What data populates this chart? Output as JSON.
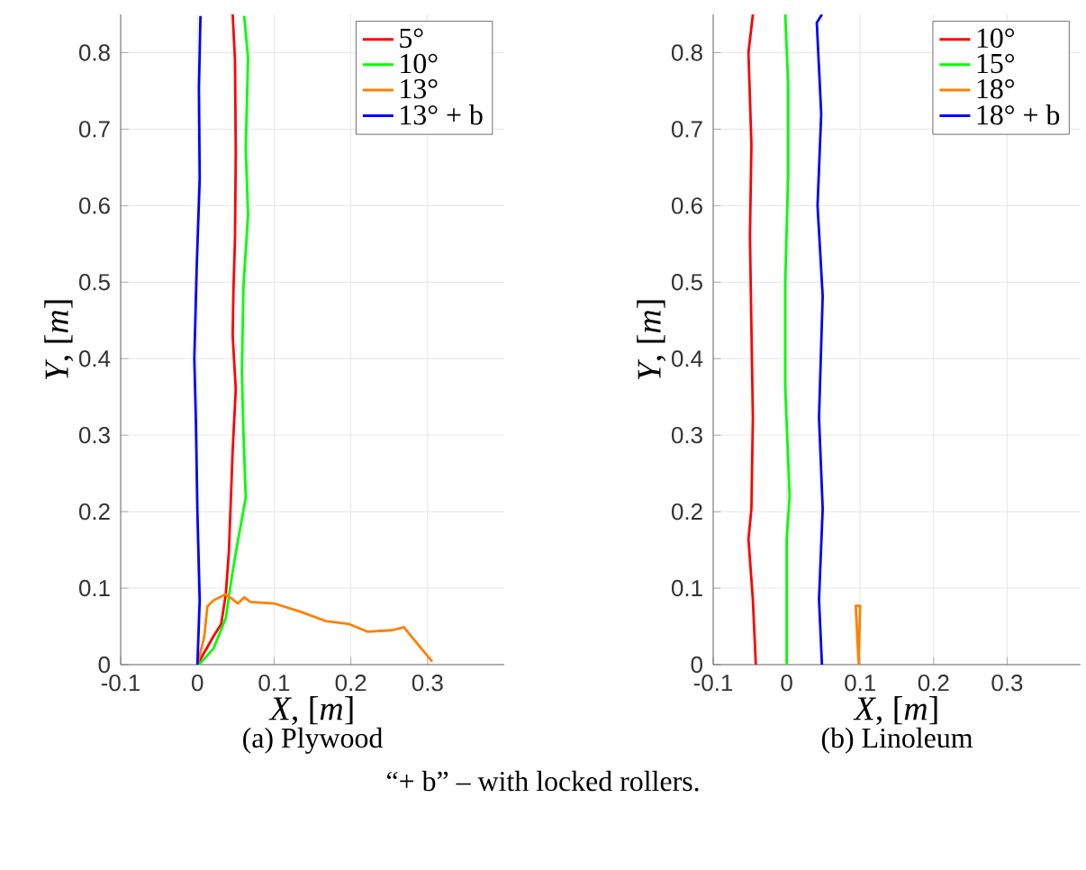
{
  "chart_data": [
    {
      "type": "line",
      "xlabel": "*X*, [*m*]",
      "ylabel": "*Y*, [*m*]",
      "xlim": [
        -0.1,
        0.4
      ],
      "ylim": [
        0,
        0.85
      ],
      "xticks": [
        -0.1,
        0,
        0.1,
        0.2,
        0.3
      ],
      "yticks": [
        0,
        0.1,
        0.2,
        0.3,
        0.4,
        0.5,
        0.6,
        0.7,
        0.8
      ],
      "grid": true,
      "legend": "top right",
      "annotations": [
        "(a) Plywood"
      ],
      "series": [
        {
          "name": "5°",
          "color": "#ff0000",
          "x": [
            0,
            0.021,
            0.031,
            0.037,
            0.041,
            0.043,
            0.046,
            0.05,
            0.046,
            0.047,
            0.049,
            0.05,
            0.049,
            0.046
          ],
          "values": [
            0,
            0.037,
            0.053,
            0.092,
            0.147,
            0.2,
            0.28,
            0.36,
            0.43,
            0.49,
            0.557,
            0.67,
            0.79,
            0.85
          ]
        },
        {
          "name": "10°",
          "color": "#00ff00",
          "x": [
            0.002,
            0.021,
            0.037,
            0.045,
            0.053,
            0.063,
            0.06,
            0.058,
            0.06,
            0.066,
            0.063,
            0.066,
            0.061
          ],
          "values": [
            0,
            0.021,
            0.061,
            0.116,
            0.163,
            0.218,
            0.305,
            0.383,
            0.494,
            0.588,
            0.675,
            0.793,
            0.848
          ]
        },
        {
          "name": "13°",
          "color": "#ff8000",
          "x": [
            0,
            0.009,
            0.013,
            0.021,
            0.037,
            0.053,
            0.061,
            0.069,
            0.1,
            0.135,
            0.167,
            0.198,
            0.222,
            0.254,
            0.269,
            0.306
          ],
          "values": [
            0,
            0.037,
            0.076,
            0.084,
            0.092,
            0.08,
            0.088,
            0.082,
            0.08,
            0.069,
            0.057,
            0.053,
            0.043,
            0.045,
            0.049,
            0.004
          ]
        },
        {
          "name": "13° + b",
          "color": "#0000ff",
          "x": [
            0,
            0.003,
            0,
            -0.002,
            -0.004,
            -0.001,
            0.003,
            0.002,
            0.004
          ],
          "values": [
            0,
            0.084,
            0.2,
            0.32,
            0.4,
            0.517,
            0.635,
            0.754,
            0.848
          ]
        }
      ]
    },
    {
      "type": "line",
      "xlabel": "*X*, [*m*]",
      "ylabel": "*Y*, [*m*]",
      "xlim": [
        -0.1,
        0.4
      ],
      "ylim": [
        0,
        0.85
      ],
      "xticks": [
        -0.1,
        0,
        0.1,
        0.2,
        0.3
      ],
      "yticks": [
        0,
        0.1,
        0.2,
        0.3,
        0.4,
        0.5,
        0.6,
        0.7,
        0.8
      ],
      "grid": true,
      "legend": "top right",
      "annotations": [
        "(b) Linoleum",
        "“+ b” – with locked rollers."
      ],
      "series": [
        {
          "name": "10°",
          "color": "#ff0000",
          "x": [
            -0.042,
            -0.046,
            -0.052,
            -0.048,
            -0.046,
            -0.048,
            -0.05,
            -0.048,
            -0.052,
            -0.046
          ],
          "values": [
            0,
            0.085,
            0.164,
            0.204,
            0.323,
            0.44,
            0.561,
            0.68,
            0.8,
            0.85
          ]
        },
        {
          "name": "15°",
          "color": "#00ff00",
          "x": [
            0,
            0,
            0.004,
            -0.002,
            -0.002,
            0.002,
            0.002,
            -0.002
          ],
          "values": [
            0,
            0.164,
            0.22,
            0.363,
            0.498,
            0.64,
            0.76,
            0.85
          ]
        },
        {
          "name": "18°",
          "color": "#ff8000",
          "x": [
            0.098,
            0.094,
            0.1,
            0.098
          ],
          "values": [
            0,
            0.077,
            0.077,
            0.006
          ]
        },
        {
          "name": "18° + b",
          "color": "#0000ff",
          "x": [
            0.048,
            0.044,
            0.049,
            0.044,
            0.049,
            0.042,
            0.047,
            0.041,
            0.048
          ],
          "values": [
            0,
            0.085,
            0.204,
            0.323,
            0.482,
            0.6,
            0.72,
            0.839,
            0.85
          ]
        }
      ]
    }
  ]
}
